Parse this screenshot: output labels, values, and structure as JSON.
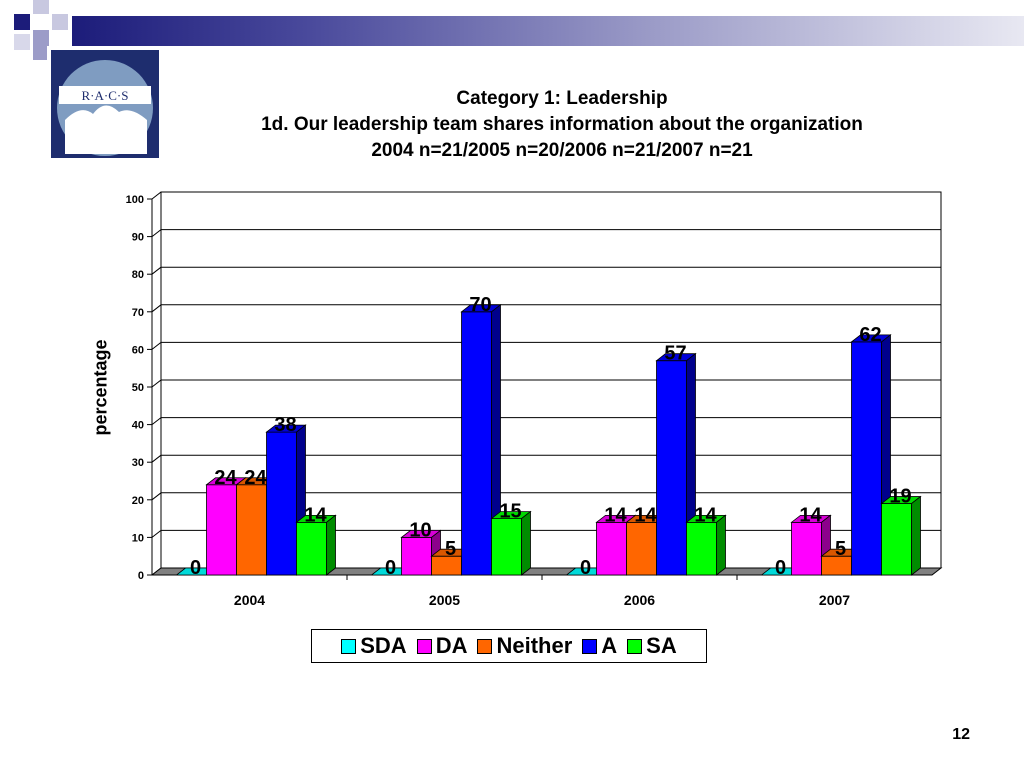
{
  "title": {
    "line1": "Category 1: Leadership",
    "line2": "1d. Our leadership team shares information about the organization",
    "line3": "2004 n=21/2005 n=20/2006 n=21/2007 n=21"
  },
  "logo": {
    "text": "R·A·C·S"
  },
  "page_number": "12",
  "colors": {
    "SDA": "#00ffff",
    "DA": "#ff00ff",
    "Neither": "#ff6600",
    "A": "#0000ff",
    "SA": "#00ff00",
    "banner": "#1c1c7a"
  },
  "chart_data": {
    "type": "bar",
    "subtype": "3d-clustered",
    "categories": [
      "2004",
      "2005",
      "2006",
      "2007"
    ],
    "series": [
      {
        "name": "SDA",
        "values": [
          0,
          0,
          0,
          0
        ]
      },
      {
        "name": "DA",
        "values": [
          24,
          10,
          14,
          14
        ]
      },
      {
        "name": "Neither",
        "values": [
          24,
          5,
          14,
          5
        ]
      },
      {
        "name": "A",
        "values": [
          38,
          70,
          57,
          62
        ]
      },
      {
        "name": "SA",
        "values": [
          14,
          15,
          14,
          19
        ]
      }
    ],
    "ylabel": "percentage",
    "xlabel": "",
    "ylim": [
      0,
      100
    ],
    "yticks": [
      0,
      10,
      20,
      30,
      40,
      50,
      60,
      70,
      80,
      90,
      100
    ],
    "grid": true,
    "legend_position": "bottom"
  }
}
